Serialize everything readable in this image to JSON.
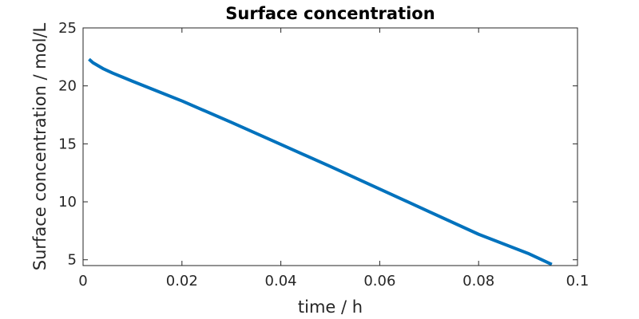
{
  "chart_data": {
    "type": "line",
    "title": "Surface concentration",
    "xlabel": "time / h",
    "ylabel": "Surface concentration / mol/L",
    "xlim": [
      0,
      0.1
    ],
    "ylim": [
      4.5,
      25
    ],
    "xticks": [
      0,
      0.02,
      0.04,
      0.06,
      0.08,
      0.1
    ],
    "xtick_labels": [
      "0",
      "0.02",
      "0.04",
      "0.06",
      "0.08",
      "0.1"
    ],
    "yticks": [
      5,
      10,
      15,
      20,
      25
    ],
    "ytick_labels": [
      "5",
      "10",
      "15",
      "20",
      "25"
    ],
    "grid": false,
    "legend": "none",
    "series": [
      {
        "color": "#0072bd",
        "x": [
          0.0012,
          0.002,
          0.003,
          0.004,
          0.005,
          0.006,
          0.008,
          0.01,
          0.015,
          0.02,
          0.03,
          0.04,
          0.05,
          0.06,
          0.07,
          0.08,
          0.09,
          0.0948
        ],
        "y": [
          22.3,
          22.0,
          21.75,
          21.5,
          21.3,
          21.1,
          20.75,
          20.4,
          19.55,
          18.7,
          16.85,
          14.95,
          13.05,
          11.1,
          9.15,
          7.2,
          5.55,
          4.6
        ]
      }
    ]
  }
}
